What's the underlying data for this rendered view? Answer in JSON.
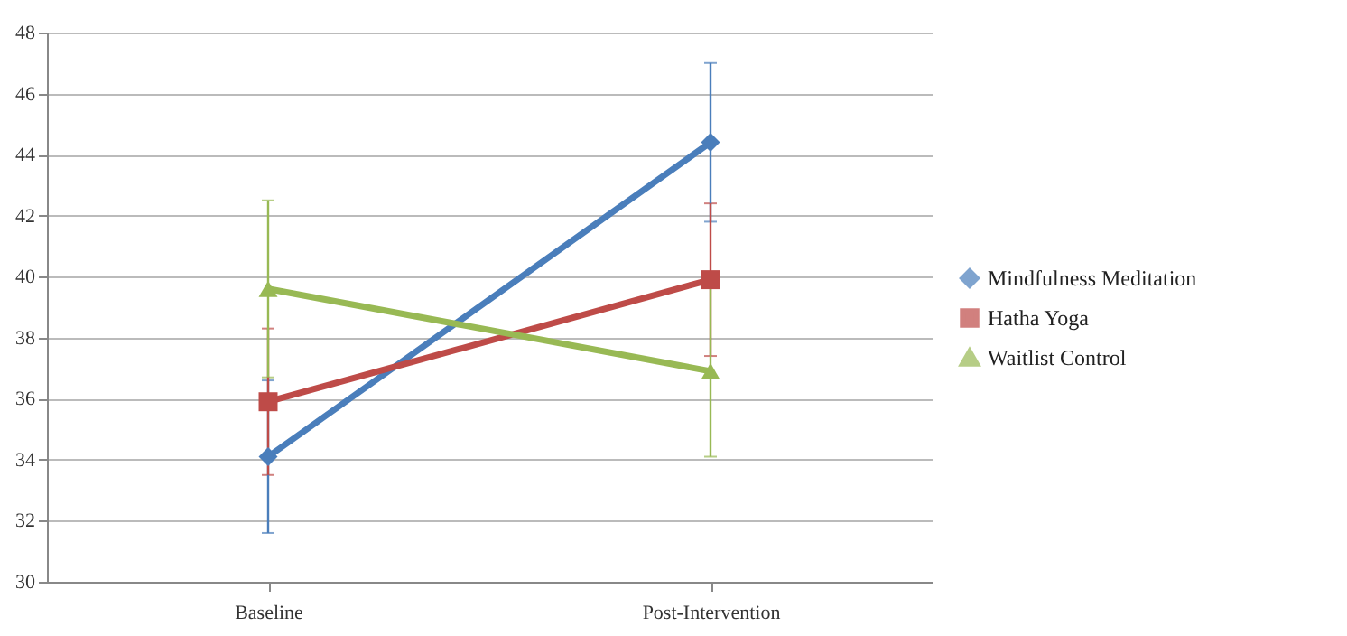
{
  "chart_data": {
    "type": "line",
    "categories": [
      "Baseline",
      "Post-Intervention"
    ],
    "series": [
      {
        "name": "Mindfulness Meditation",
        "color": "#4a7ebb",
        "marker": "diamond",
        "values": [
          34.1,
          44.4
        ],
        "errors": [
          2.5,
          2.6
        ]
      },
      {
        "name": "Hatha Yoga",
        "color": "#be4b48",
        "marker": "square",
        "values": [
          35.9,
          39.9
        ],
        "errors": [
          2.4,
          2.5
        ]
      },
      {
        "name": "Waitlist Control",
        "color": "#98b954",
        "marker": "triangle",
        "values": [
          39.6,
          36.9
        ],
        "errors": [
          2.9,
          2.8
        ]
      }
    ],
    "ylim": [
      30,
      48
    ],
    "yticks": [
      30,
      32,
      34,
      36,
      38,
      40,
      42,
      44,
      46,
      48
    ],
    "grid": "y",
    "legend": "right"
  }
}
